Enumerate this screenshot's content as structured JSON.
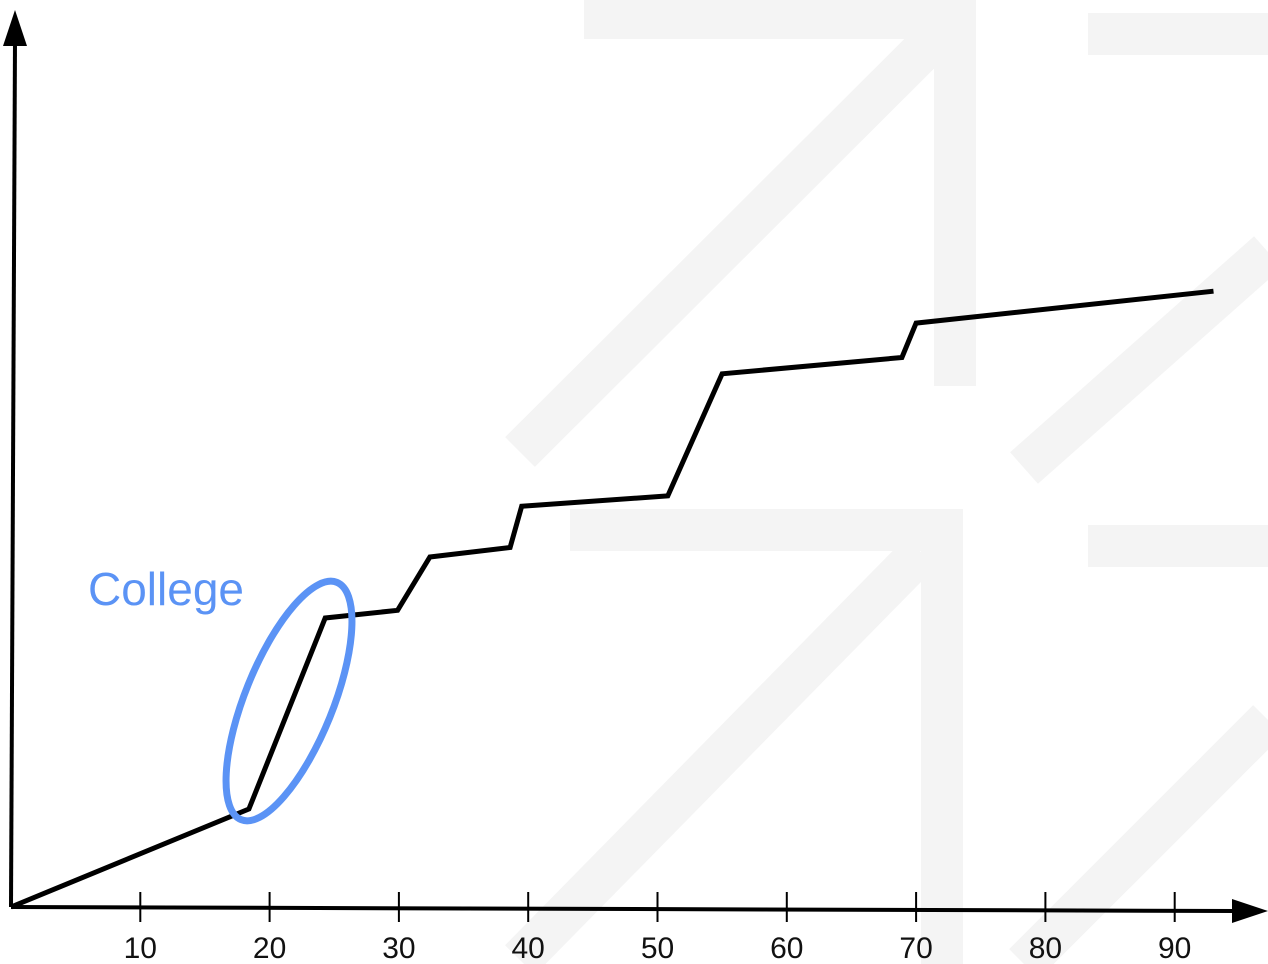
{
  "chart_data": {
    "type": "line",
    "title": "",
    "xlabel": "",
    "ylabel": "",
    "xlim": [
      0,
      95
    ],
    "ylim": [
      0,
      100
    ],
    "x_ticks": [
      "10",
      "20",
      "30",
      "40",
      "50",
      "60",
      "70",
      "80",
      "90"
    ],
    "x_tick_values": [
      10,
      20,
      30,
      40,
      50,
      60,
      70,
      80,
      90
    ],
    "y_ticks": [],
    "grid": false,
    "legend": "none",
    "series": [
      {
        "points": [
          [
            0,
            0
          ],
          [
            18.4,
            11.4
          ],
          [
            24.3,
            33.6
          ],
          [
            29.9,
            34.5
          ],
          [
            32.4,
            40.7
          ],
          [
            38.6,
            41.8
          ],
          [
            39.5,
            46.6
          ],
          [
            50.8,
            47.8
          ],
          [
            55.0,
            62.0
          ],
          [
            68.9,
            63.9
          ],
          [
            70.0,
            67.9
          ],
          [
            93.0,
            71.6
          ]
        ],
        "color": "#000000"
      }
    ],
    "annotations": [
      {
        "text": "College",
        "color": "#5b93f5",
        "target_x_range": [
          18.4,
          24.3
        ]
      }
    ]
  }
}
